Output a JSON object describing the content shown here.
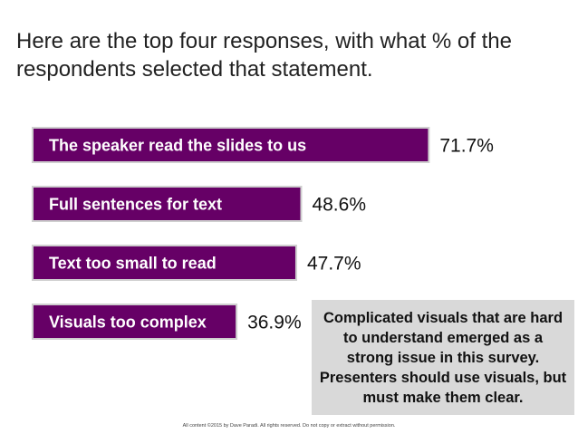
{
  "slide": {
    "title": "Here are the top four responses, with what % of the respondents selected that statement.",
    "callout": "Complicated visuals that are hard to understand emerged as a strong issue in this survey. Presenters should use visuals, but must make them clear.",
    "footer": "All content ©2015 by Dave Paradi. All rights reserved. Do not copy or extract without permission."
  },
  "colors": {
    "bar_fill": "#660066",
    "bar_border": "#cfcfcf",
    "bar_text": "#ffffff",
    "callout_bg": "#d9d9d9"
  },
  "chart_data": {
    "type": "bar",
    "orientation": "horizontal",
    "categories": [
      "The speaker read the slides to us",
      "Full sentences for text",
      "Text too small to read",
      "Visuals too complex"
    ],
    "values": [
      71.7,
      48.6,
      47.7,
      36.9
    ],
    "value_labels": [
      "71.7%",
      "48.6%",
      "47.7%",
      "36.9%"
    ],
    "unit": "%",
    "labels_inside_bars": true,
    "grid": false,
    "legend": "none",
    "axes_visible": false
  }
}
